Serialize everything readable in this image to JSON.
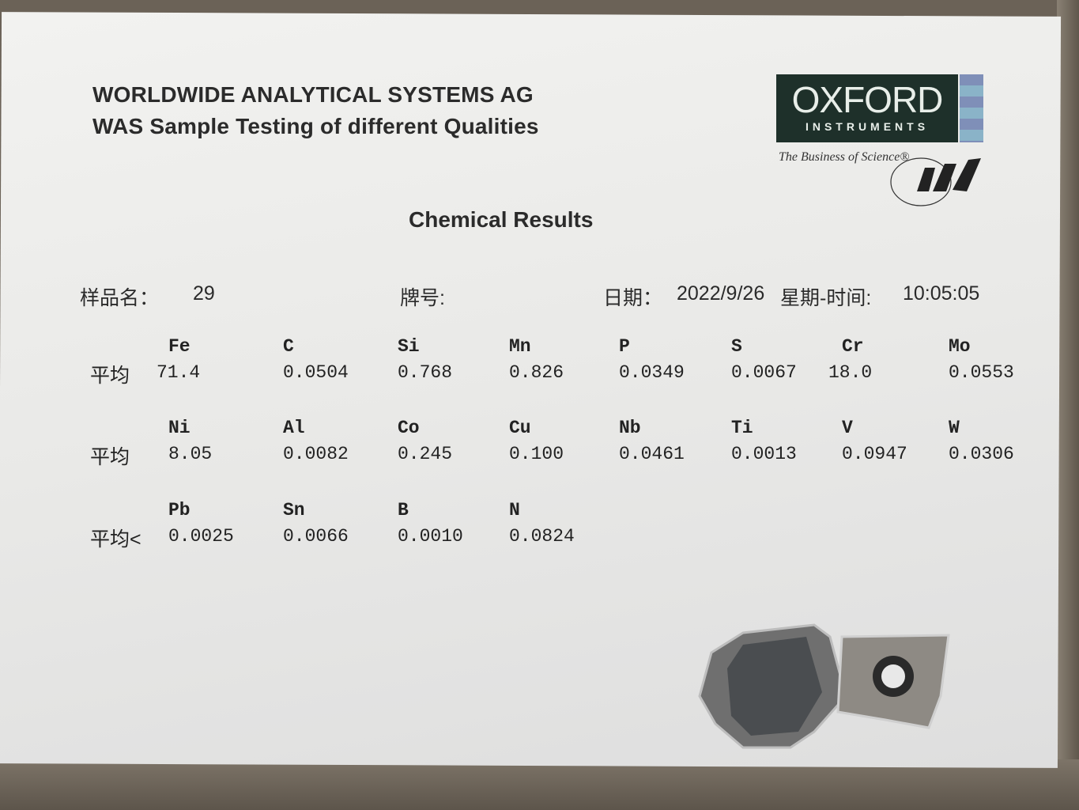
{
  "header": {
    "company": "WORLDWIDE ANALYTICAL SYSTEMS AG",
    "subtitle": "WAS Sample Testing of different Qualities"
  },
  "logo": {
    "brand": "OXFORD",
    "sub": "INSTRUMENTS",
    "tagline": "The Business of Science®",
    "mark": "WAS",
    "colors": {
      "box": "#1e302a",
      "stripe1": "#7f8fb8",
      "stripe2": "#8ab3c8"
    }
  },
  "title": "Chemical Results",
  "meta": {
    "sample_label": "样品名：",
    "sample_value": "29",
    "grade_label": "牌号:",
    "date_label": "日期：",
    "date_value": "2022/9/26",
    "weekday_time_label": "星期-时间:",
    "time_value": "10:05:05"
  },
  "rows": [
    {
      "label": "平均",
      "cells": [
        {
          "el": "Fe",
          "v": "71.4"
        },
        {
          "el": "C",
          "v": "0.0504"
        },
        {
          "el": "Si",
          "v": "0.768"
        },
        {
          "el": "Mn",
          "v": "0.826"
        },
        {
          "el": "P",
          "v": "0.0349"
        },
        {
          "el": "S",
          "v": "0.0067"
        },
        {
          "el": "Cr",
          "v": "18.0"
        },
        {
          "el": "Mo",
          "v": "0.0553"
        }
      ]
    },
    {
      "label": "平均",
      "cells": [
        {
          "el": "Ni",
          "v": "8.05"
        },
        {
          "el": "Al",
          "v": "0.0082"
        },
        {
          "el": "Co",
          "v": "0.245"
        },
        {
          "el": "Cu",
          "v": "0.100"
        },
        {
          "el": "Nb",
          "v": "0.0461"
        },
        {
          "el": "Ti",
          "v": "0.0013"
        },
        {
          "el": "V",
          "v": "0.0947"
        },
        {
          "el": "W",
          "v": "0.0306"
        }
      ]
    },
    {
      "label": "平均<",
      "cells": [
        {
          "el": "Pb",
          "v": "0.0025"
        },
        {
          "el": "Sn",
          "v": "0.0066"
        },
        {
          "el": "B",
          "v": "0.0010"
        },
        {
          "el": "N",
          "v": "0.0824"
        }
      ]
    }
  ]
}
